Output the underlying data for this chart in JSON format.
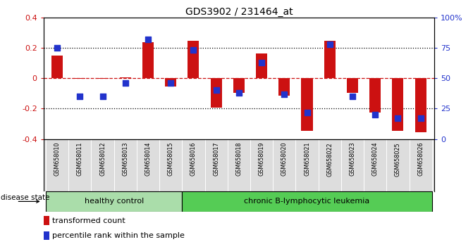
{
  "title": "GDS3902 / 231464_at",
  "samples": [
    "GSM658010",
    "GSM658011",
    "GSM658012",
    "GSM658013",
    "GSM658014",
    "GSM658015",
    "GSM658016",
    "GSM658017",
    "GSM658018",
    "GSM658019",
    "GSM658020",
    "GSM658021",
    "GSM658022",
    "GSM658023",
    "GSM658024",
    "GSM658025",
    "GSM658026"
  ],
  "red_values": [
    0.15,
    -0.005,
    -0.005,
    0.005,
    0.235,
    -0.055,
    0.248,
    -0.195,
    -0.095,
    0.165,
    -0.115,
    -0.345,
    0.248,
    -0.095,
    -0.225,
    -0.345,
    -0.355
  ],
  "blue_percentiles": [
    75,
    35,
    35,
    46,
    82,
    46,
    73,
    40,
    38,
    63,
    37,
    22,
    78,
    35,
    20,
    17,
    17
  ],
  "healthy_count": 6,
  "ylim": [
    -0.4,
    0.4
  ],
  "yticks_left": [
    -0.4,
    -0.2,
    0.0,
    0.2,
    0.4
  ],
  "ytick_labels_left": [
    "-0.4",
    "-0.2",
    "0",
    "0.2",
    "0.4"
  ],
  "yticks_right": [
    0,
    25,
    50,
    75,
    100
  ],
  "ytick_labels_right": [
    "0",
    "25",
    "50",
    "75",
    "100%"
  ],
  "group1_label": "healthy control",
  "group2_label": "chronic B-lymphocytic leukemia",
  "disease_state_label": "disease state",
  "legend1": "transformed count",
  "legend2": "percentile rank within the sample",
  "red_color": "#cc1111",
  "blue_color": "#2233cc",
  "healthy_color": "#aaddaa",
  "leukemia_color": "#55cc55",
  "bar_width": 0.5,
  "bg_color": "#ffffff"
}
